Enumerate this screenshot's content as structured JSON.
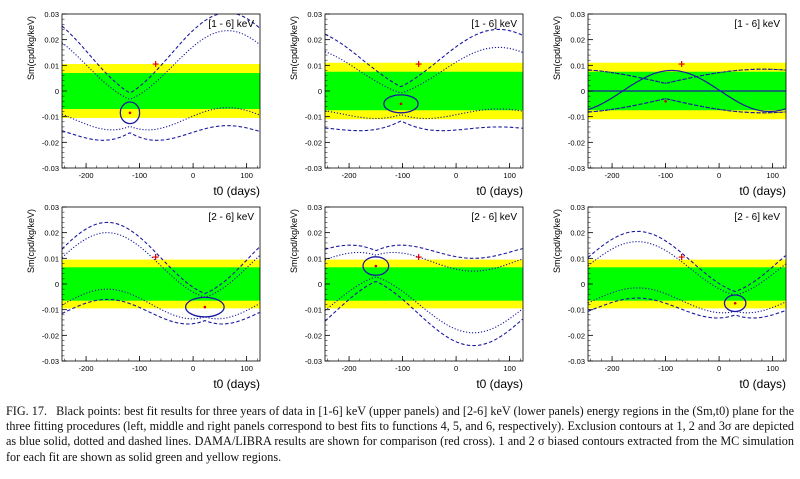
{
  "figure": {
    "y_axis_label": "Sm(cpd/kg/keV)",
    "x_axis_label": "t0 (days)",
    "x_ticks": [
      -200,
      -100,
      0,
      100
    ],
    "y_ticks": [
      "0.03",
      "0.02",
      "0.01",
      "0",
      "-0.01",
      "-0.02",
      "-0.03"
    ],
    "panel_labels": [
      "[1 - 6] keV",
      "[1 - 6] keV",
      "[1 - 6] keV",
      "[2 - 6] keV",
      "[2 - 6] keV",
      "[2 - 6] keV"
    ]
  },
  "colors": {
    "yellow_band": "#ffff00",
    "green_band": "#00ff00",
    "contour": "#1a1aa0",
    "dama_cross": "#e00000",
    "best_fit_point": "#cc0000"
  },
  "chart_data": [
    {
      "type": "scatter",
      "panel": "upper-left",
      "energy_region": "[1 - 6] keV",
      "xlabel": "t0 (days)",
      "ylabel": "Sm(cpd/kg/keV)",
      "xlim": [
        -245,
        125
      ],
      "ylim": [
        -0.03,
        0.03
      ],
      "best_fit": {
        "t0": -118,
        "Sm": -0.0085
      },
      "dama_libra": {
        "t0": -70,
        "Sm": 0.0105
      },
      "green_band": [
        -0.007,
        0.007
      ],
      "yellow_band": [
        -0.0105,
        0.0105
      ]
    },
    {
      "type": "scatter",
      "panel": "upper-middle",
      "energy_region": "[1 - 6] keV",
      "xlabel": "t0 (days)",
      "ylabel": "Sm(cpd/kg/keV)",
      "xlim": [
        -245,
        125
      ],
      "ylim": [
        -0.03,
        0.03
      ],
      "best_fit": {
        "t0": -103,
        "Sm": -0.005
      },
      "dama_libra": {
        "t0": -70,
        "Sm": 0.0105
      },
      "green_band": [
        -0.0075,
        0.0075
      ],
      "yellow_band": [
        -0.011,
        0.011
      ]
    },
    {
      "type": "scatter",
      "panel": "upper-right",
      "energy_region": "[1 - 6] keV",
      "xlabel": "t0 (days)",
      "ylabel": "Sm(cpd/kg/keV)",
      "xlim": [
        -245,
        125
      ],
      "ylim": [
        -0.03,
        0.03
      ],
      "best_fit": {
        "t0": -100,
        "Sm": -0.004
      },
      "dama_libra": {
        "t0": -70,
        "Sm": 0.0105
      },
      "green_band": [
        -0.0075,
        0.0075
      ],
      "yellow_band": [
        -0.011,
        0.011
      ]
    },
    {
      "type": "scatter",
      "panel": "lower-left",
      "energy_region": "[2 - 6] keV",
      "xlabel": "t0 (days)",
      "ylabel": "Sm(cpd/kg/keV)",
      "xlim": [
        -245,
        125
      ],
      "ylim": [
        -0.03,
        0.03
      ],
      "best_fit": {
        "t0": 22,
        "Sm": -0.009
      },
      "dama_libra": {
        "t0": -70,
        "Sm": 0.0105
      },
      "green_band": [
        -0.0065,
        0.0065
      ],
      "yellow_band": [
        -0.0095,
        0.0095
      ]
    },
    {
      "type": "scatter",
      "panel": "lower-middle",
      "energy_region": "[2 - 6] keV",
      "xlabel": "t0 (days)",
      "ylabel": "Sm(cpd/kg/keV)",
      "xlim": [
        -245,
        125
      ],
      "ylim": [
        -0.03,
        0.03
      ],
      "best_fit": {
        "t0": -150,
        "Sm": 0.007
      },
      "dama_libra": {
        "t0": -70,
        "Sm": 0.0105
      },
      "green_band": [
        -0.0065,
        0.0065
      ],
      "yellow_band": [
        -0.0095,
        0.0095
      ]
    },
    {
      "type": "scatter",
      "panel": "lower-right",
      "energy_region": "[2 - 6] keV",
      "xlabel": "t0 (days)",
      "ylabel": "Sm(cpd/kg/keV)",
      "xlim": [
        -245,
        125
      ],
      "ylim": [
        -0.03,
        0.03
      ],
      "best_fit": {
        "t0": 30,
        "Sm": -0.0075
      },
      "dama_libra": {
        "t0": -70,
        "Sm": 0.0105
      },
      "green_band": [
        -0.0065,
        0.0065
      ],
      "yellow_band": [
        -0.0095,
        0.0095
      ]
    }
  ],
  "caption": {
    "label": "FIG. 17.",
    "text": "Black points: best fit results for three years of data in [1-6] keV (upper panels) and [2-6] keV (lower panels) energy regions in the (Sm,t0) plane for the three fitting procedures (left, middle and right panels correspond to best fits to functions 4, 5, and 6, respectively). Exclusion contours at 1, 2 and 3σ are depicted as blue solid, dotted and dashed lines. DAMA/LIBRA results are shown for comparison (red cross). 1 and 2 σ biased contours extracted from the MC simulation for each fit are shown as solid green and yellow regions."
  }
}
